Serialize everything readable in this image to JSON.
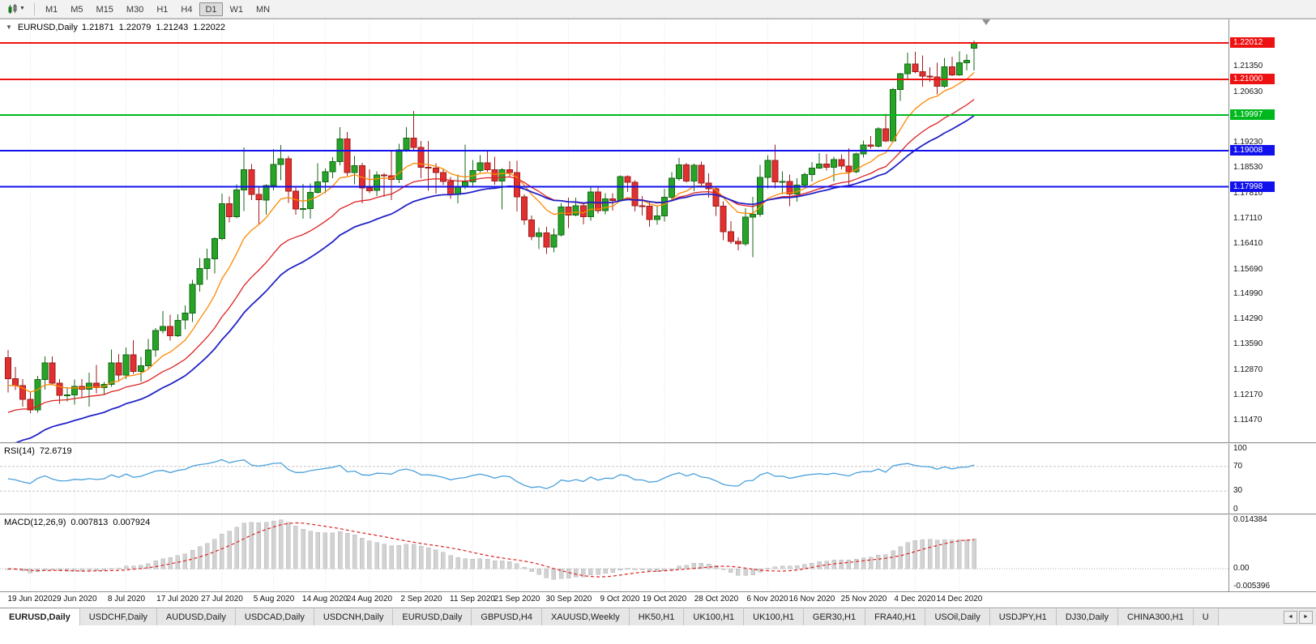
{
  "toolbar": {
    "chart_type_caret": "▼",
    "timeframes": [
      {
        "label": "M1",
        "active": false
      },
      {
        "label": "M5",
        "active": false
      },
      {
        "label": "M15",
        "active": false
      },
      {
        "label": "M30",
        "active": false
      },
      {
        "label": "H1",
        "active": false
      },
      {
        "label": "H4",
        "active": false
      },
      {
        "label": "D1",
        "active": true
      },
      {
        "label": "W1",
        "active": false
      },
      {
        "label": "MN",
        "active": false
      }
    ]
  },
  "chart": {
    "title": {
      "collapse_icon": "▼",
      "symbol": "EURUSD,Daily",
      "open": "1.21871",
      "high": "1.22079",
      "low": "1.21243",
      "close": "1.22022"
    },
    "rsi_label": {
      "name": "RSI(14)",
      "value": "72.6719"
    },
    "macd_label": {
      "name": "MACD(12,26,9)",
      "macd_value": "0.007813",
      "signal_value": "0.007924"
    }
  },
  "chart_data": {
    "type": "candlestick",
    "symbol": "EURUSD",
    "timeframe": "Daily",
    "price_axis": {
      "max": 1.2267,
      "min": 1.1086,
      "labels": [
        1.2135,
        1.2063,
        1.1993,
        1.1923,
        1.1853,
        1.1781,
        1.1711,
        1.1641,
        1.1569,
        1.1499,
        1.1429,
        1.1359,
        1.1287,
        1.1217,
        1.1147
      ]
    },
    "colors": {
      "up_fill": "#27a427",
      "up_stroke": "#156815",
      "down_fill": "#e23030",
      "down_stroke": "#9e1c1c",
      "grid": "#e3e3e3"
    },
    "hlines": [
      {
        "value": 1.22012,
        "label": "1.22012",
        "color": "#ee1111"
      },
      {
        "value": 1.21,
        "label": "1.21000",
        "color": "#ee1111"
      },
      {
        "value": 1.19997,
        "label": "1.19997",
        "color": "#00b81e"
      },
      {
        "value": 1.19008,
        "label": "1.19008",
        "color": "#1111ee"
      },
      {
        "value": 1.17998,
        "label": "1.17998",
        "color": "#1111ee"
      }
    ],
    "ma": [
      {
        "period": 10,
        "seed": 1.124,
        "color": "#ff8800",
        "width": 1.3
      },
      {
        "period": 21,
        "seed": 1.116,
        "color": "#dd2222",
        "width": 1.3
      },
      {
        "period": 30,
        "seed": 1.106,
        "color": "#2323c8",
        "width": 1.8
      }
    ],
    "rsi": {
      "period": 14,
      "color": "#4aa0dc",
      "levels": [
        70,
        30
      ],
      "axis_labels": [
        100,
        70,
        30,
        0
      ]
    },
    "macd": {
      "fast": 12,
      "slow": 26,
      "signal": 9,
      "hist_color": "#d2d2d2",
      "hist_stroke": "#b8b8b8",
      "signal_color": "#dd2222",
      "scale_max": 0.014384,
      "scale_min": -0.005396,
      "axis_labels": [
        {
          "label": "0.014384",
          "value": 0.014384
        },
        {
          "label": "0.00",
          "value": 0
        },
        {
          "label": "-0.005396",
          "value": -0.005396
        }
      ]
    },
    "x_ticks": [
      {
        "label": "19 Jun 2020",
        "index": 3
      },
      {
        "label": "29 Jun 2020",
        "index": 9
      },
      {
        "label": "8 Jul 2020",
        "index": 16
      },
      {
        "label": "17 Jul 2020",
        "index": 23
      },
      {
        "label": "27 Jul 2020",
        "index": 29
      },
      {
        "label": "5 Aug 2020",
        "index": 36
      },
      {
        "label": "14 Aug 2020",
        "index": 43
      },
      {
        "label": "24 Aug 2020",
        "index": 49
      },
      {
        "label": "2 Sep 2020",
        "index": 56
      },
      {
        "label": "11 Sep 2020",
        "index": 63
      },
      {
        "label": "21 Sep 2020",
        "index": 69
      },
      {
        "label": "30 Sep 2020",
        "index": 76
      },
      {
        "label": "9 Oct 2020",
        "index": 83
      },
      {
        "label": "19 Oct 2020",
        "index": 89
      },
      {
        "label": "28 Oct 2020",
        "index": 96
      },
      {
        "label": "6 Nov 2020",
        "index": 103
      },
      {
        "label": "16 Nov 2020",
        "index": 109
      },
      {
        "label": "25 Nov 2020",
        "index": 116
      },
      {
        "label": "4 Dec 2020",
        "index": 123
      },
      {
        "label": "14 Dec 2020",
        "index": 129
      }
    ],
    "candles": [
      [
        1.1322,
        1.1344,
        1.1225,
        1.1264
      ],
      [
        1.1264,
        1.1296,
        1.1232,
        1.1244
      ],
      [
        1.1244,
        1.1262,
        1.1186,
        1.1206
      ],
      [
        1.1206,
        1.1227,
        1.1168,
        1.1177
      ],
      [
        1.1177,
        1.1271,
        1.1169,
        1.1261
      ],
      [
        1.1261,
        1.1326,
        1.1233,
        1.1308
      ],
      [
        1.1308,
        1.1326,
        1.1248,
        1.1251
      ],
      [
        1.1251,
        1.1262,
        1.1194,
        1.1217
      ],
      [
        1.1217,
        1.124,
        1.12,
        1.1218
      ],
      [
        1.1218,
        1.1261,
        1.1191,
        1.1242
      ],
      [
        1.1242,
        1.1262,
        1.1211,
        1.1234
      ],
      [
        1.1234,
        1.1281,
        1.1185,
        1.1251
      ],
      [
        1.1251,
        1.1302,
        1.1223,
        1.1239
      ],
      [
        1.1239,
        1.1254,
        1.1219,
        1.1248
      ],
      [
        1.1248,
        1.1345,
        1.1241,
        1.1308
      ],
      [
        1.1308,
        1.1333,
        1.1259,
        1.1274
      ],
      [
        1.1274,
        1.1351,
        1.1263,
        1.133
      ],
      [
        1.133,
        1.1371,
        1.1277,
        1.1284
      ],
      [
        1.1284,
        1.1325,
        1.1255,
        1.13
      ],
      [
        1.13,
        1.1374,
        1.1293,
        1.1344
      ],
      [
        1.1344,
        1.1405,
        1.1325,
        1.1398
      ],
      [
        1.1398,
        1.1452,
        1.139,
        1.141
      ],
      [
        1.141,
        1.1442,
        1.137,
        1.1384
      ],
      [
        1.1384,
        1.1444,
        1.138,
        1.1427
      ],
      [
        1.1427,
        1.1468,
        1.1402,
        1.1447
      ],
      [
        1.1447,
        1.154,
        1.1422,
        1.1527
      ],
      [
        1.1527,
        1.1601,
        1.1507,
        1.1571
      ],
      [
        1.1571,
        1.1627,
        1.154,
        1.1598
      ],
      [
        1.1598,
        1.1658,
        1.1558,
        1.1655
      ],
      [
        1.1655,
        1.1781,
        1.165,
        1.1752
      ],
      [
        1.1752,
        1.1773,
        1.17,
        1.1716
      ],
      [
        1.1716,
        1.1807,
        1.1712,
        1.1791
      ],
      [
        1.1791,
        1.1909,
        1.1732,
        1.1847
      ],
      [
        1.1847,
        1.1863,
        1.1762,
        1.1778
      ],
      [
        1.1778,
        1.1798,
        1.1696,
        1.1763
      ],
      [
        1.1763,
        1.1807,
        1.1722,
        1.1803
      ],
      [
        1.1803,
        1.1905,
        1.179,
        1.1862
      ],
      [
        1.1862,
        1.1916,
        1.1818,
        1.1878
      ],
      [
        1.1878,
        1.1886,
        1.1754,
        1.1787
      ],
      [
        1.1787,
        1.1798,
        1.1722,
        1.1738
      ],
      [
        1.1738,
        1.1808,
        1.1711,
        1.1739
      ],
      [
        1.1739,
        1.1809,
        1.171,
        1.1784
      ],
      [
        1.1784,
        1.1865,
        1.1781,
        1.1813
      ],
      [
        1.1813,
        1.1851,
        1.1782,
        1.1842
      ],
      [
        1.1842,
        1.1882,
        1.1824,
        1.187
      ],
      [
        1.187,
        1.1966,
        1.186,
        1.1933
      ],
      [
        1.1933,
        1.1953,
        1.183,
        1.1839
      ],
      [
        1.1839,
        1.1886,
        1.1807,
        1.1859
      ],
      [
        1.1859,
        1.1867,
        1.1753,
        1.1796
      ],
      [
        1.1796,
        1.1848,
        1.1782,
        1.1789
      ],
      [
        1.1789,
        1.1843,
        1.1774,
        1.1833
      ],
      [
        1.1833,
        1.1838,
        1.1772,
        1.183
      ],
      [
        1.183,
        1.1901,
        1.1763,
        1.182
      ],
      [
        1.182,
        1.192,
        1.181,
        1.1903
      ],
      [
        1.1903,
        1.1966,
        1.1897,
        1.1936
      ],
      [
        1.1936,
        1.2011,
        1.1901,
        1.191
      ],
      [
        1.191,
        1.1928,
        1.1823,
        1.1854
      ],
      [
        1.1854,
        1.1928,
        1.1789,
        1.1852
      ],
      [
        1.1852,
        1.1865,
        1.1781,
        1.1839
      ],
      [
        1.1839,
        1.1848,
        1.1804,
        1.1815
      ],
      [
        1.1815,
        1.1827,
        1.1766,
        1.1778
      ],
      [
        1.1778,
        1.1834,
        1.1753,
        1.1801
      ],
      [
        1.1801,
        1.1917,
        1.1793,
        1.1813
      ],
      [
        1.1813,
        1.1874,
        1.1799,
        1.1845
      ],
      [
        1.1845,
        1.1888,
        1.1839,
        1.1867
      ],
      [
        1.1867,
        1.19,
        1.1842,
        1.1847
      ],
      [
        1.1847,
        1.1883,
        1.1805,
        1.1815
      ],
      [
        1.1815,
        1.1852,
        1.1737,
        1.1847
      ],
      [
        1.1847,
        1.1871,
        1.1826,
        1.1839
      ],
      [
        1.1839,
        1.1872,
        1.1731,
        1.1772
      ],
      [
        1.1772,
        1.1778,
        1.1693,
        1.1707
      ],
      [
        1.1707,
        1.1719,
        1.1651,
        1.1661
      ],
      [
        1.1661,
        1.1686,
        1.1626,
        1.1671
      ],
      [
        1.1671,
        1.1688,
        1.1612,
        1.1631
      ],
      [
        1.1631,
        1.1683,
        1.1616,
        1.1665
      ],
      [
        1.1665,
        1.1755,
        1.1661,
        1.1743
      ],
      [
        1.1743,
        1.1769,
        1.1684,
        1.1721
      ],
      [
        1.1721,
        1.1769,
        1.1717,
        1.1747
      ],
      [
        1.1747,
        1.1751,
        1.1695,
        1.1716
      ],
      [
        1.1716,
        1.1797,
        1.1705,
        1.1785
      ],
      [
        1.1785,
        1.1798,
        1.1725,
        1.1733
      ],
      [
        1.1733,
        1.1782,
        1.1723,
        1.1766
      ],
      [
        1.1766,
        1.1782,
        1.1733,
        1.1761
      ],
      [
        1.1761,
        1.1831,
        1.1758,
        1.1828
      ],
      [
        1.1828,
        1.1832,
        1.1785,
        1.1812
      ],
      [
        1.1812,
        1.1818,
        1.1731,
        1.1747
      ],
      [
        1.1747,
        1.1774,
        1.1719,
        1.1745
      ],
      [
        1.1745,
        1.1758,
        1.1688,
        1.1708
      ],
      [
        1.1708,
        1.1747,
        1.1694,
        1.1718
      ],
      [
        1.1718,
        1.1794,
        1.1703,
        1.177
      ],
      [
        1.177,
        1.184,
        1.176,
        1.1823
      ],
      [
        1.1823,
        1.188,
        1.1817,
        1.1861
      ],
      [
        1.1861,
        1.1866,
        1.1811,
        1.1816
      ],
      [
        1.1816,
        1.1864,
        1.1787,
        1.186
      ],
      [
        1.186,
        1.187,
        1.1803,
        1.181
      ],
      [
        1.181,
        1.1837,
        1.1769,
        1.1794
      ],
      [
        1.1794,
        1.18,
        1.1718,
        1.1746
      ],
      [
        1.1746,
        1.1759,
        1.165,
        1.1674
      ],
      [
        1.1674,
        1.1704,
        1.164,
        1.1647
      ],
      [
        1.1647,
        1.1658,
        1.1622,
        1.164
      ],
      [
        1.164,
        1.174,
        1.1635,
        1.1715
      ],
      [
        1.1715,
        1.1771,
        1.1603,
        1.1723
      ],
      [
        1.1723,
        1.1861,
        1.1716,
        1.1826
      ],
      [
        1.1826,
        1.1888,
        1.1795,
        1.1873
      ],
      [
        1.1873,
        1.1918,
        1.1795,
        1.1813
      ],
      [
        1.1813,
        1.1843,
        1.178,
        1.1815
      ],
      [
        1.1815,
        1.1834,
        1.1745,
        1.1779
      ],
      [
        1.1779,
        1.1823,
        1.1758,
        1.1804
      ],
      [
        1.1804,
        1.1839,
        1.1799,
        1.1834
      ],
      [
        1.1834,
        1.1869,
        1.1814,
        1.1852
      ],
      [
        1.1852,
        1.1894,
        1.185,
        1.1863
      ],
      [
        1.1863,
        1.1891,
        1.1845,
        1.1854
      ],
      [
        1.1854,
        1.1884,
        1.1815,
        1.1876
      ],
      [
        1.1876,
        1.189,
        1.1849,
        1.1857
      ],
      [
        1.1857,
        1.1907,
        1.18,
        1.1842
      ],
      [
        1.1842,
        1.1895,
        1.1837,
        1.1891
      ],
      [
        1.1891,
        1.1929,
        1.1881,
        1.1916
      ],
      [
        1.1916,
        1.1941,
        1.1906,
        1.1913
      ],
      [
        1.1913,
        1.1966,
        1.1909,
        1.1962
      ],
      [
        1.1962,
        1.2003,
        1.1924,
        1.1928
      ],
      [
        1.1928,
        1.2076,
        1.1923,
        1.2071
      ],
      [
        1.2071,
        1.2118,
        1.204,
        1.2115
      ],
      [
        1.2115,
        1.2174,
        1.21,
        1.2143
      ],
      [
        1.2143,
        1.2177,
        1.2116,
        1.2121
      ],
      [
        1.2121,
        1.2166,
        1.2079,
        1.2109
      ],
      [
        1.2109,
        1.2133,
        1.2093,
        1.2106
      ],
      [
        1.2106,
        1.2146,
        1.2058,
        1.208
      ],
      [
        1.208,
        1.2159,
        1.2076,
        1.2135
      ],
      [
        1.2135,
        1.2163,
        1.2109,
        1.2112
      ],
      [
        1.2112,
        1.2178,
        1.211,
        1.2146
      ],
      [
        1.2146,
        1.217,
        1.2124,
        1.2153
      ],
      [
        1.21871,
        1.22079,
        1.21243,
        1.22022
      ]
    ]
  },
  "tab_bar": {
    "scroll_left_icon": "◄",
    "scroll_right_icon": "►",
    "tabs": [
      {
        "label": "EURUSD,Daily",
        "active": true
      },
      {
        "label": "USDCHF,Daily",
        "active": false
      },
      {
        "label": "AUDUSD,Daily",
        "active": false
      },
      {
        "label": "USDCAD,Daily",
        "active": false
      },
      {
        "label": "USDCNH,Daily",
        "active": false
      },
      {
        "label": "EURUSD,Daily",
        "active": false
      },
      {
        "label": "GBPUSD,H4",
        "active": false
      },
      {
        "label": "XAUUSD,Weekly",
        "active": false
      },
      {
        "label": "HK50,H1",
        "active": false
      },
      {
        "label": "UK100,H1",
        "active": false
      },
      {
        "label": "UK100,H1",
        "active": false
      },
      {
        "label": "GER30,H1",
        "active": false
      },
      {
        "label": "FRA40,H1",
        "active": false
      },
      {
        "label": "USOil,Daily",
        "active": false
      },
      {
        "label": "USDJPY,H1",
        "active": false
      },
      {
        "label": "DJ30,Daily",
        "active": false
      },
      {
        "label": "CHINA300,H1",
        "active": false
      },
      {
        "label": "U",
        "active": false
      }
    ]
  }
}
